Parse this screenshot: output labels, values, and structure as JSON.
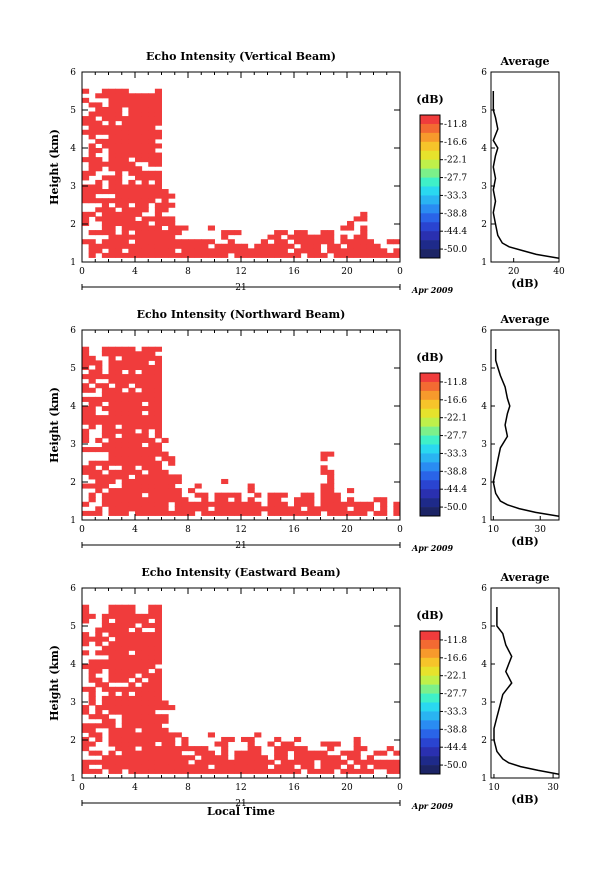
{
  "figure": {
    "date_label": "Apr 2009",
    "day_label": "21",
    "x_axis_label": "Local Time",
    "y_axis_label": "Height (km)",
    "colorbar_unit": "(dB)",
    "colorbar_ticks": [
      "-11.8",
      "-16.6",
      "-22.1",
      "-27.7",
      "-33.3",
      "-38.8",
      "-44.4",
      "-50.0"
    ],
    "colorbar_colors": [
      "#f03c3c",
      "#f36a32",
      "#f79a2c",
      "#f6c42a",
      "#e6e22c",
      "#bff04a",
      "#7cf08a",
      "#3ff0c8",
      "#2ad8f0",
      "#2ab4f2",
      "#2a8cf2",
      "#2a64e8",
      "#2a44d0",
      "#2a30b0",
      "#1e2a8a",
      "#1c2466"
    ],
    "echo_color": "#f03c3c",
    "avg_title": "Average",
    "avg_unit": "(dB)"
  },
  "chart_data": [
    {
      "type": "heatmap",
      "title": "Echo Intensity (Vertical Beam)",
      "x_ticks": [
        "0",
        "4",
        "8",
        "12",
        "16",
        "20",
        "0"
      ],
      "y_ticks": [
        "1",
        "2",
        "3",
        "4",
        "5",
        "6"
      ],
      "xlim": [
        0,
        24
      ],
      "ylim": [
        1,
        6
      ],
      "xlabel": "",
      "ylabel": "Height (km)",
      "echo_top_km": [
        5.5,
        5.5,
        5.5,
        5.5,
        5.5,
        5.5,
        5.5,
        5.5,
        5.4,
        5.4,
        5.5,
        5.5,
        3.0,
        2.9,
        2.0,
        1.9,
        1.7,
        1.8,
        1.9,
        1.9,
        1.7,
        1.8,
        1.9,
        1.8,
        1.6,
        1.7,
        1.8,
        1.7,
        1.8,
        1.9,
        1.8,
        1.7,
        1.9,
        2.0,
        1.9,
        1.7,
        1.8,
        1.8,
        1.7,
        1.9,
        2.0,
        2.4,
        2.3,
        1.9,
        1.8,
        1.7,
        1.8,
        1.6
      ],
      "average_profile": {
        "xlim": [
          10,
          40
        ],
        "x_ticks": [
          "20",
          "40"
        ],
        "height_km": [
          1.1,
          1.2,
          1.3,
          1.4,
          1.5,
          1.7,
          2.0,
          2.3,
          2.6,
          2.9,
          3.2,
          3.5,
          3.8,
          4.0,
          4.2,
          4.5,
          4.8,
          5.0,
          5.2,
          5.5
        ],
        "db": [
          40,
          30,
          24,
          18,
          15,
          13,
          12,
          11,
          12,
          11,
          12,
          11,
          12,
          13,
          11,
          13,
          12,
          11,
          11,
          11
        ]
      }
    },
    {
      "type": "heatmap",
      "title": "Echo Intensity (Northward Beam)",
      "x_ticks": [
        "0",
        "4",
        "8",
        "12",
        "16",
        "20",
        "0"
      ],
      "y_ticks": [
        "1",
        "2",
        "3",
        "4",
        "5",
        "6"
      ],
      "xlim": [
        0,
        24
      ],
      "ylim": [
        1,
        6
      ],
      "xlabel": "",
      "ylabel": "Height (km)",
      "echo_top_km": [
        5.5,
        5.5,
        5.5,
        5.5,
        5.5,
        5.5,
        5.5,
        5.5,
        5.4,
        5.5,
        5.5,
        5.5,
        3.1,
        2.8,
        2.1,
        1.9,
        1.8,
        1.9,
        1.7,
        1.8,
        1.9,
        2.0,
        1.8,
        1.7,
        1.8,
        1.9,
        1.7,
        1.6,
        1.8,
        1.9,
        1.7,
        1.6,
        1.8,
        1.9,
        1.7,
        1.6,
        2.7,
        2.8,
        1.9,
        1.7,
        1.8,
        1.6,
        1.7,
        1.5,
        1.6,
        1.6,
        1.5,
        1.4
      ],
      "average_profile": {
        "xlim": [
          9,
          38
        ],
        "x_ticks": [
          "10",
          "30"
        ],
        "height_km": [
          1.1,
          1.2,
          1.3,
          1.4,
          1.5,
          1.7,
          2.0,
          2.3,
          2.6,
          2.9,
          3.2,
          3.5,
          3.8,
          4.0,
          4.2,
          4.5,
          4.8,
          5.0,
          5.2,
          5.5
        ],
        "db": [
          38,
          28,
          21,
          16,
          13,
          11,
          10,
          11,
          12,
          13,
          16,
          15,
          16,
          17,
          16,
          15,
          13,
          12,
          11,
          11
        ]
      }
    },
    {
      "type": "heatmap",
      "title": "Echo Intensity (Eastward Beam)",
      "x_ticks": [
        "0",
        "4",
        "8",
        "12",
        "16",
        "20",
        "0"
      ],
      "y_ticks": [
        "1",
        "2",
        "3",
        "4",
        "5",
        "6"
      ],
      "xlim": [
        0,
        24
      ],
      "ylim": [
        1,
        6
      ],
      "xlabel": "Local Time",
      "ylabel": "Height (km)",
      "echo_top_km": [
        5.5,
        5.5,
        5.5,
        5.5,
        5.5,
        5.5,
        5.5,
        5.5,
        5.3,
        5.4,
        5.5,
        5.5,
        3.2,
        3.0,
        2.3,
        2.0,
        1.9,
        2.0,
        2.2,
        2.1,
        1.9,
        2.0,
        2.1,
        1.9,
        2.0,
        2.2,
        2.1,
        2.0,
        1.9,
        2.1,
        2.3,
        2.0,
        2.1,
        1.9,
        2.0,
        1.8,
        2.1,
        2.0,
        1.9,
        1.8,
        1.9,
        2.0,
        1.8,
        1.7,
        1.8,
        1.9,
        1.8,
        1.7
      ],
      "average_profile": {
        "xlim": [
          9,
          32
        ],
        "x_ticks": [
          "10",
          "30"
        ],
        "height_km": [
          1.1,
          1.2,
          1.3,
          1.4,
          1.5,
          1.7,
          2.0,
          2.3,
          2.6,
          2.9,
          3.2,
          3.5,
          3.8,
          4.0,
          4.2,
          4.5,
          4.8,
          5.0,
          5.2,
          5.5
        ],
        "db": [
          32,
          25,
          19,
          15,
          13,
          11,
          10,
          10,
          11,
          12,
          13,
          16,
          14,
          15,
          16,
          14,
          13,
          11,
          11,
          11
        ]
      }
    }
  ]
}
